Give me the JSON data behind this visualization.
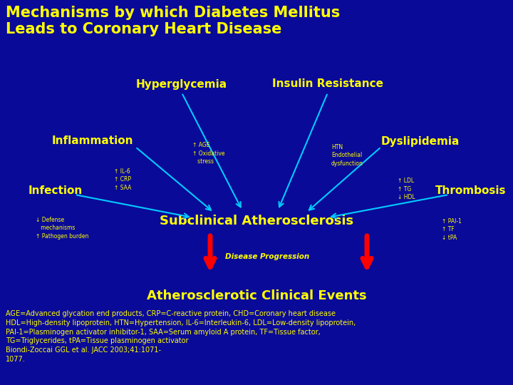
{
  "bg_color": "#0A0A99",
  "title": "Mechanisms by which Diabetes Mellitus\nLeads to Coronary Heart Disease",
  "title_color": "#FFFF00",
  "title_fontsize": 15,
  "hyperglycemia_text": "Hyperglycemia",
  "insulin_resistance_text": "Insulin Resistance",
  "inflammation_text": "Inflammation",
  "dyslipidemia_text": "Dyslipidemia",
  "infection_text": "Infection",
  "thrombosis_text": "Thrombosis",
  "subclinical_text": "Subclinical Atherosclerosis",
  "clinical_text": "Atherosclerotic Clinical Events",
  "disease_prog_text": "Disease Progression",
  "label_color": "#FFFF00",
  "arrow_color": "#00CCFF",
  "red_arrow_color": "#FF0000",
  "annotation_age": "↑ AGE\n↑ Oxidative\n   stress",
  "annotation_il6": "↑ IL-6\n↑ CRP\n↑ SAA",
  "annotation_defense": "↓ Defense\n   mechanisms\n↑ Pathogen burden",
  "annotation_htn": "HTN\nEndothelial\ndysfunction",
  "annotation_ldl": "↑ LDL\n↑ TG\n↓ HDL",
  "annotation_pai": "↑ PAI-1\n↑ TF\n↓ tPA",
  "footnote": "AGE=Advanced glycation end products, CRP=C-reactive protein, CHD=Coronary heart disease\nHDL=High-density lipoprotein, HTN=Hypertension, IL-6=Interleukin-6, LDL=Low-density lipoprotein,\nPAI-1=Plasminogen activator inhibitor-1, SAA=Serum amyloid A protein, TF=Tissue factor,\nTG=Triglycerides, tPA=Tissue plasminogen activator\nBiondi-Zoccai GGL et al. JACC 2003;41:1071-\n1077.",
  "footnote_color": "#FFFF00",
  "footnote_fontsize": 7.0
}
